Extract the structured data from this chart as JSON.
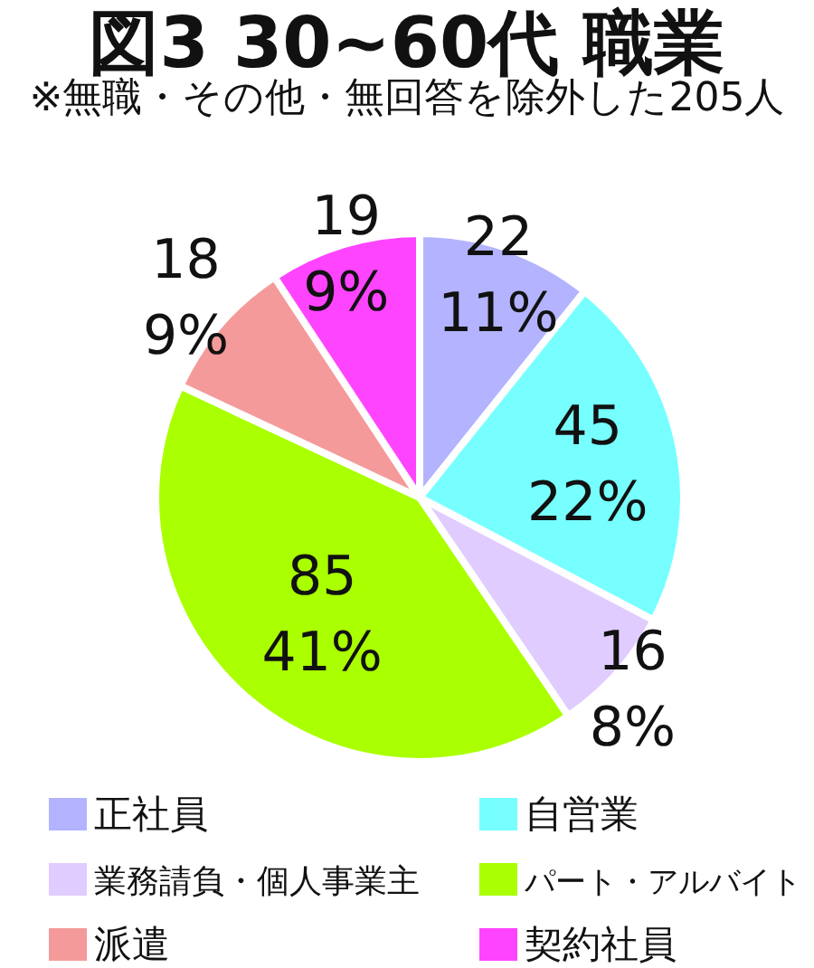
{
  "chart_data": {
    "type": "pie",
    "title": "図3 30~60代 職業",
    "subtitle": "※無職・その他・無回答を除外した205人",
    "categories": [
      "正社員",
      "自営業",
      "業務請負・個人事業主",
      "パート・アルバイト",
      "派遣",
      "契約社員"
    ],
    "values": [
      22,
      45,
      16,
      85,
      18,
      19
    ],
    "value_labels": [
      "22\n11%",
      "45\n22%",
      "16\n8%",
      "85\n41%",
      "18\n9%",
      "19\n9%"
    ],
    "colors": [
      "#b3b3ff",
      "#77ffff",
      "#e0ccff",
      "#aaff00",
      "#f59a9a",
      "#ff44ff"
    ],
    "legend": "bottom"
  }
}
